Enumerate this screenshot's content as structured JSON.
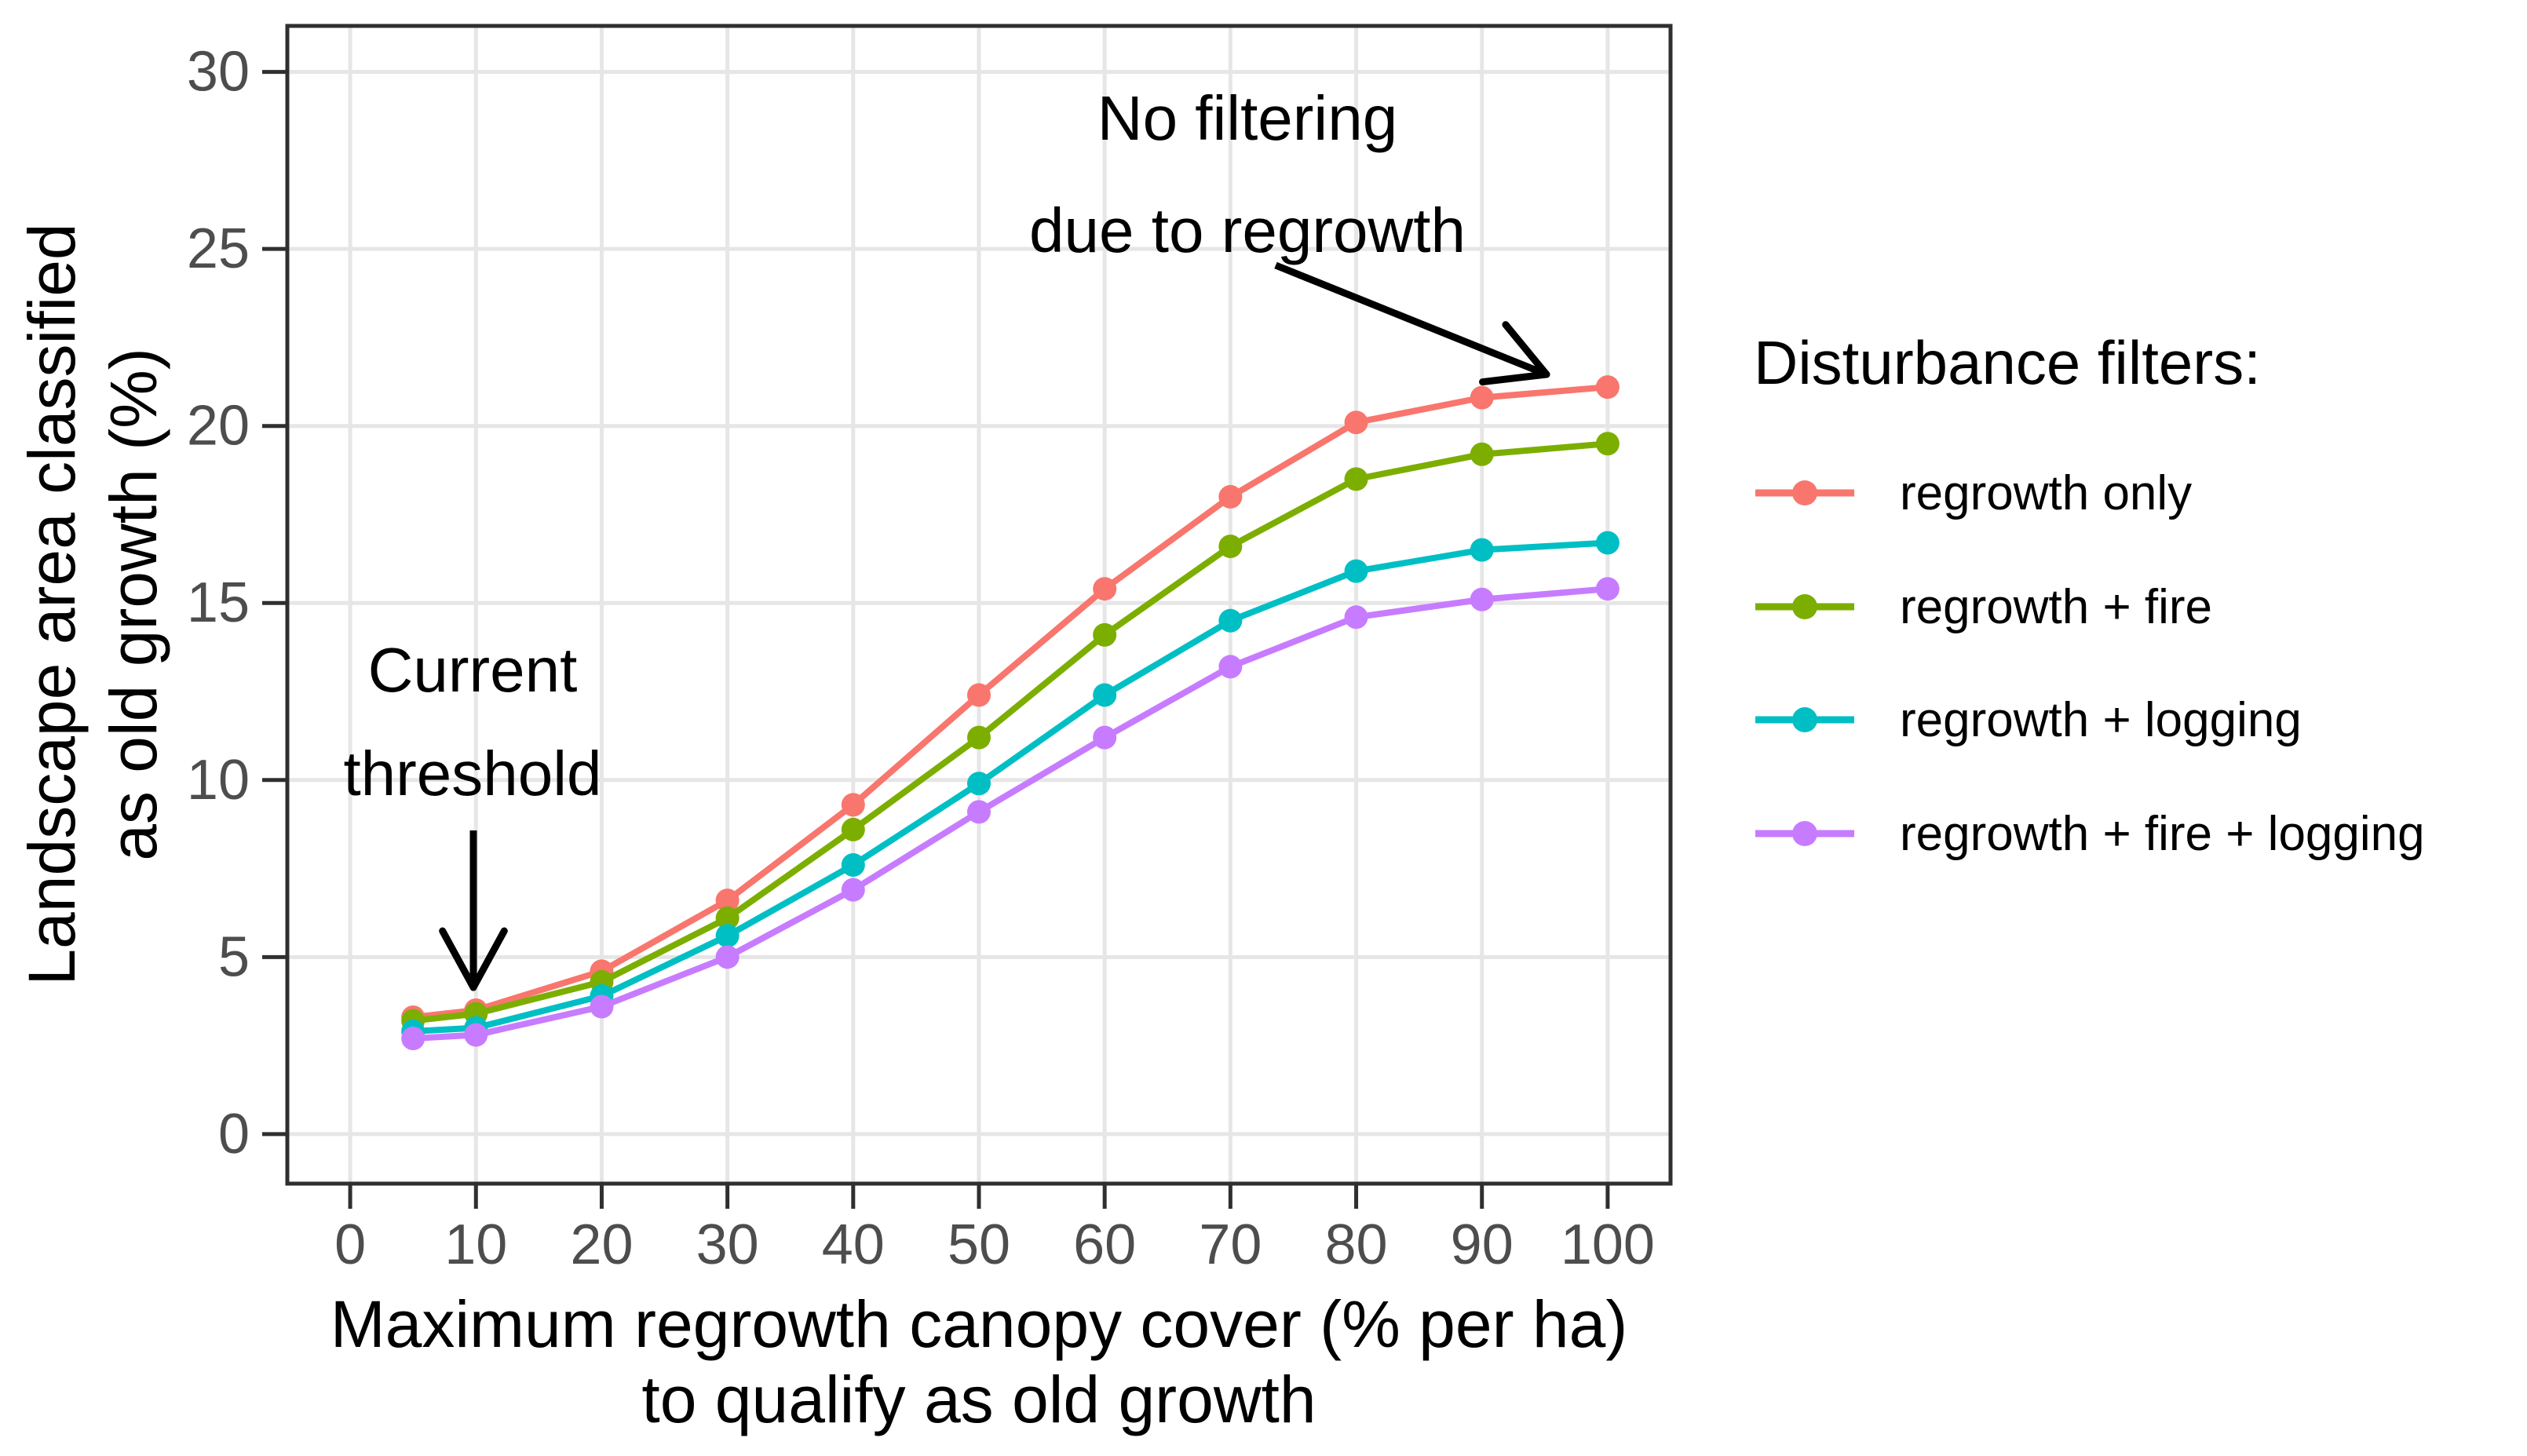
{
  "chart_data": {
    "type": "line",
    "x": [
      5,
      10,
      20,
      30,
      40,
      50,
      60,
      70,
      80,
      90,
      100
    ],
    "series": [
      {
        "name": "regrowth only",
        "color": "#F8766D",
        "values": [
          3.3,
          3.5,
          4.6,
          6.6,
          9.3,
          12.4,
          15.4,
          18.0,
          20.1,
          20.8,
          21.1
        ]
      },
      {
        "name": "regrowth + fire",
        "color": "#7CAE00",
        "values": [
          3.2,
          3.4,
          4.3,
          6.1,
          8.6,
          11.2,
          14.1,
          16.6,
          18.5,
          19.2,
          19.5
        ]
      },
      {
        "name": "regrowth + logging",
        "color": "#00BFC4",
        "values": [
          2.9,
          3.0,
          3.9,
          5.6,
          7.6,
          9.9,
          12.4,
          14.5,
          15.9,
          16.5,
          16.7
        ]
      },
      {
        "name": "regrowth + fire + logging",
        "color": "#C77CFF",
        "values": [
          2.7,
          2.8,
          3.6,
          5.0,
          6.9,
          9.1,
          11.2,
          13.2,
          14.6,
          15.1,
          15.4
        ]
      }
    ],
    "xlabel": [
      "Maximum regrowth canopy cover (% per ha)",
      "to qualify as old growth"
    ],
    "ylabel": [
      "Landscape area classified",
      "as old growth (%)"
    ],
    "x_ticks": [
      0,
      10,
      20,
      30,
      40,
      50,
      60,
      70,
      80,
      90,
      100
    ],
    "y_ticks": [
      0,
      5,
      10,
      15,
      20,
      25,
      30
    ],
    "xlim": [
      -5,
      105
    ],
    "ylim": [
      -1.4,
      31.3
    ],
    "grid": "major-only",
    "legend": {
      "title": "Disturbance filters:",
      "position": "right"
    },
    "annotations": [
      {
        "id": "no-filtering",
        "lines": [
          "No filtering",
          "due to regrowth"
        ],
        "points_to": {
          "x": 100,
          "series": "regrowth only"
        }
      },
      {
        "id": "current-threshold",
        "lines": [
          "Current",
          "threshold"
        ],
        "points_to": {
          "x": 10
        }
      }
    ]
  }
}
